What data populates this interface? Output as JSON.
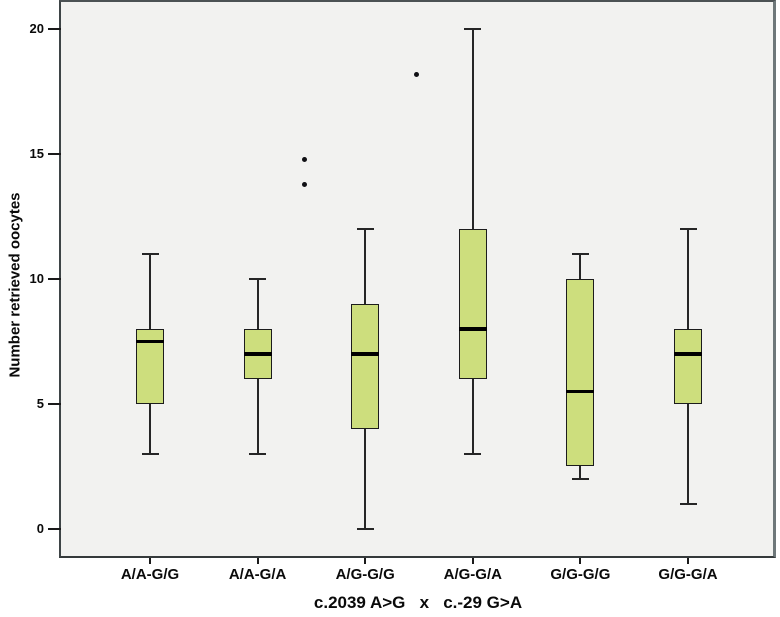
{
  "chart_data": {
    "type": "boxplot",
    "title": "",
    "ylabel": "Number retrieved oocytes",
    "xlabel": "c.2039 A>G   x   c.-29 G>A",
    "ylim": [
      -1.1,
      21.1
    ],
    "yticks": [
      0,
      5,
      10,
      15,
      20
    ],
    "grid": false,
    "legend": false,
    "categories": [
      "A/A-G/G",
      "A/A-G/A",
      "A/G-G/G",
      "A/G-G/A",
      "G/G-G/G",
      "G/G-G/A"
    ],
    "boxes": [
      {
        "category": "A/A-G/G",
        "whisker_low": 3,
        "q1": 5,
        "median": 7.5,
        "q3": 8,
        "whisker_high": 11
      },
      {
        "category": "A/A-G/A",
        "whisker_low": 3,
        "q1": 6,
        "median": 7,
        "q3": 8,
        "whisker_high": 10
      },
      {
        "category": "A/G-G/G",
        "whisker_low": 0,
        "q1": 4,
        "median": 7,
        "q3": 9,
        "whisker_high": 12
      },
      {
        "category": "A/G-G/A",
        "whisker_low": 3,
        "q1": 6,
        "median": 8,
        "q3": 12,
        "whisker_high": 20
      },
      {
        "category": "G/G-G/G",
        "whisker_low": 2,
        "q1": 2.5,
        "median": 5.5,
        "q3": 10,
        "whisker_high": 11
      },
      {
        "category": "G/G-G/A",
        "whisker_low": 1,
        "q1": 5,
        "median": 7,
        "q3": 8,
        "whisker_high": 12
      }
    ],
    "outliers": [
      {
        "between_categories": [
          "A/A-G/A",
          "A/G-G/G"
        ],
        "x_index": 1.44,
        "value": 14.8
      },
      {
        "between_categories": [
          "A/A-G/A",
          "A/G-G/G"
        ],
        "x_index": 1.44,
        "value": 13.8
      },
      {
        "between_categories": [
          "A/G-G/G",
          "A/G-G/A"
        ],
        "x_index": 2.48,
        "value": 18.2
      }
    ],
    "style": {
      "box_fill": "#cdde7d",
      "box_border": "#1c1c1c",
      "median_color": "#000000",
      "whisker_color": "#262626",
      "outlier_color": "#101014",
      "plot_bg": "#f2f2f0",
      "outer_bg": "#ffffff",
      "frame_color": "#4c5254"
    }
  }
}
